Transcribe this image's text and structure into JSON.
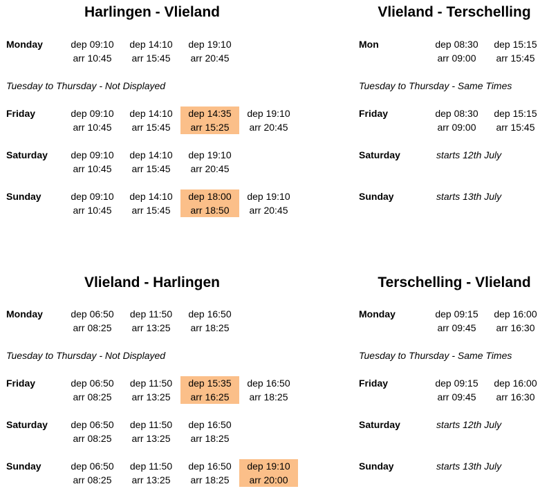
{
  "hv": {
    "title": "Harlingen - Vlieland",
    "note": "Tuesday to Thursday - Not Displayed",
    "monday": {
      "day": "Monday",
      "c1": {
        "dep": "dep 09:10",
        "arr": "arr 10:45"
      },
      "c2": {
        "dep": "dep 14:10",
        "arr": "arr 15:45"
      },
      "c3": {
        "dep": "dep 19:10",
        "arr": "arr 20:45"
      }
    },
    "friday": {
      "day": "Friday",
      "c1": {
        "dep": "dep 09:10",
        "arr": "arr 10:45"
      },
      "c2": {
        "dep": "dep 14:10",
        "arr": "arr 15:45"
      },
      "c3": {
        "dep": "dep 14:35",
        "arr": "arr 15:25"
      },
      "c4": {
        "dep": "dep 19:10",
        "arr": "arr 20:45"
      }
    },
    "saturday": {
      "day": "Saturday",
      "c1": {
        "dep": "dep 09:10",
        "arr": "arr 10:45"
      },
      "c2": {
        "dep": "dep 14:10",
        "arr": "arr 15:45"
      },
      "c3": {
        "dep": "dep 19:10",
        "arr": "arr 20:45"
      }
    },
    "sunday": {
      "day": "Sunday",
      "c1": {
        "dep": "dep 09:10",
        "arr": "arr 10:45"
      },
      "c2": {
        "dep": "dep 14:10",
        "arr": "arr 15:45"
      },
      "c3": {
        "dep": "dep 18:00",
        "arr": "arr 18:50"
      },
      "c4": {
        "dep": "dep 19:10",
        "arr": "arr 20:45"
      }
    }
  },
  "vt": {
    "title": "Vlieland - Terschelling",
    "note": "Tuesday to Thursday - Same Times",
    "monday": {
      "day": "Mon",
      "c1": {
        "dep": "dep 08:30",
        "arr": "arr 09:00"
      },
      "c2": {
        "dep": "dep 15:15",
        "arr": "arr 15:45"
      }
    },
    "friday": {
      "day": "Friday",
      "c1": {
        "dep": "dep 08:30",
        "arr": "arr 09:00"
      },
      "c2": {
        "dep": "dep 15:15",
        "arr": "arr 15:45"
      }
    },
    "saturday": {
      "day": "Saturday",
      "text": "starts 12th July"
    },
    "sunday": {
      "day": "Sunday",
      "text": "starts 13th July"
    }
  },
  "vh": {
    "title": "Vlieland - Harlingen",
    "note": "Tuesday to Thursday - Not Displayed",
    "monday": {
      "day": "Monday",
      "c1": {
        "dep": "dep 06:50",
        "arr": "arr 08:25"
      },
      "c2": {
        "dep": "dep 11:50",
        "arr": "arr 13:25"
      },
      "c3": {
        "dep": "dep 16:50",
        "arr": "arr 18:25"
      }
    },
    "friday": {
      "day": "Friday",
      "c1": {
        "dep": "dep 06:50",
        "arr": "arr 08:25"
      },
      "c2": {
        "dep": "dep 11:50",
        "arr": "arr 13:25"
      },
      "c3": {
        "dep": "dep 15:35",
        "arr": "arr 16:25"
      },
      "c4": {
        "dep": "dep 16:50",
        "arr": "arr 18:25"
      }
    },
    "saturday": {
      "day": "Saturday",
      "c1": {
        "dep": "dep 06:50",
        "arr": "arr 08:25"
      },
      "c2": {
        "dep": "dep 11:50",
        "arr": "arr 13:25"
      },
      "c3": {
        "dep": "dep 16:50",
        "arr": "arr 18:25"
      }
    },
    "sunday": {
      "day": "Sunday",
      "c1": {
        "dep": "dep 06:50",
        "arr": "arr 08:25"
      },
      "c2": {
        "dep": "dep 11:50",
        "arr": "arr 13:25"
      },
      "c3": {
        "dep": "dep 16:50",
        "arr": "arr 18:25"
      },
      "c4": {
        "dep": "dep 19:10",
        "arr": "arr 20:00"
      }
    }
  },
  "tv": {
    "title": "Terschelling - Vlieland",
    "note": "Tuesday to Thursday - Same Times",
    "monday": {
      "day": "Monday",
      "c1": {
        "dep": "dep 09:15",
        "arr": "arr 09:45"
      },
      "c2": {
        "dep": "dep 16:00",
        "arr": "arr 16:30"
      }
    },
    "friday": {
      "day": "Friday",
      "c1": {
        "dep": "dep 09:15",
        "arr": "arr 09:45"
      },
      "c2": {
        "dep": "dep 16:00",
        "arr": "arr 16:30"
      }
    },
    "saturday": {
      "day": "Saturday",
      "text": "starts 12th July"
    },
    "sunday": {
      "day": "Sunday",
      "text": "starts 13th July"
    }
  },
  "colors": {
    "highlight": "#fbbf89",
    "text": "#000000",
    "background": "#ffffff"
  }
}
